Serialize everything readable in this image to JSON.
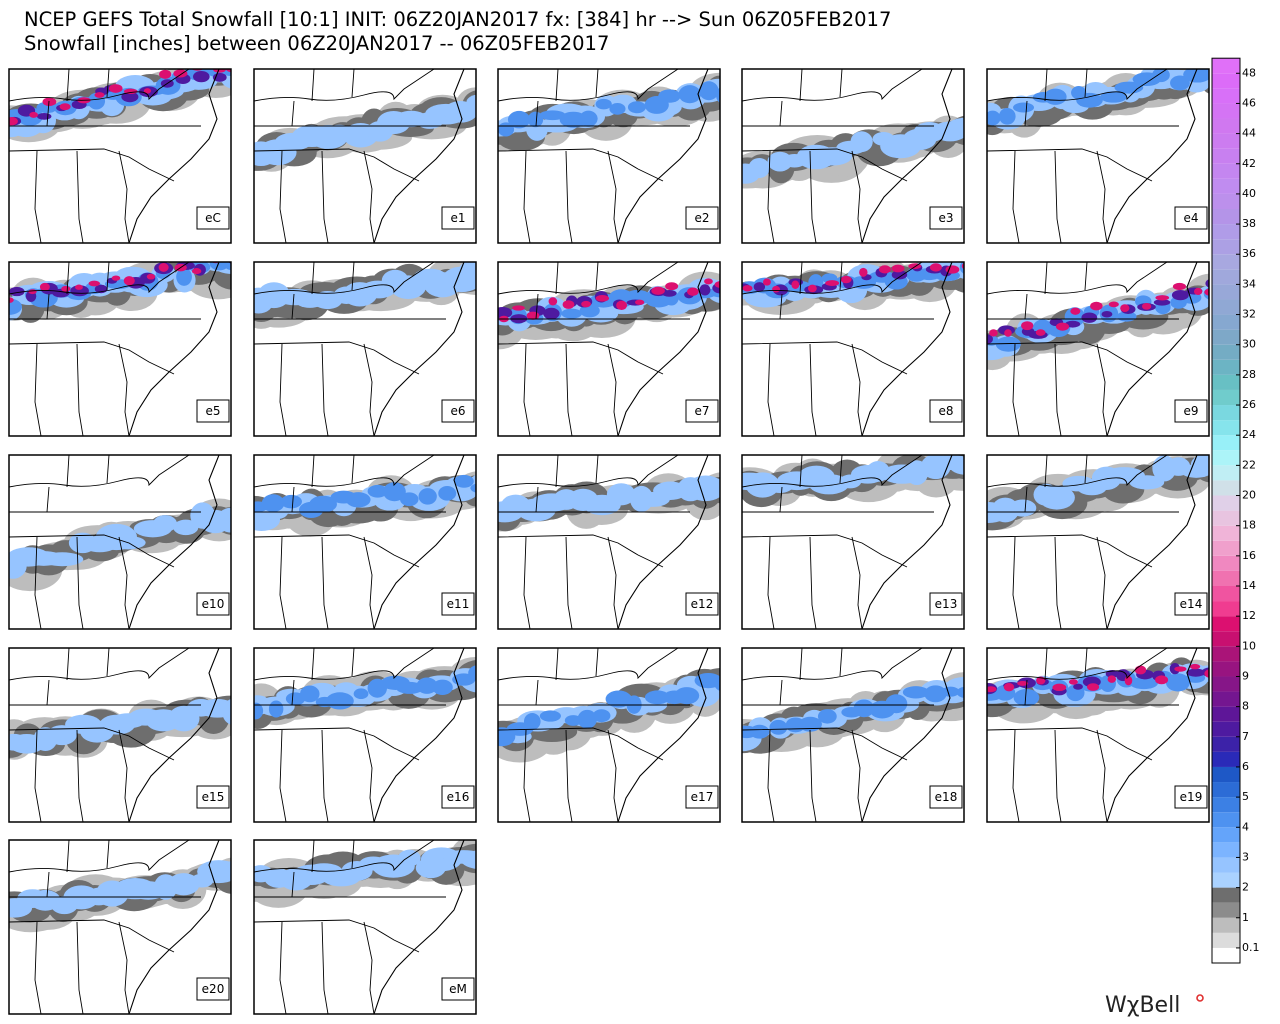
{
  "header": {
    "title": "NCEP GEFS Total Snowfall [10:1] INIT: 06Z20JAN2017 fx: [384] hr --> Sun 06Z05FEB2017",
    "subtitle": "Snowfall [inches] between 06Z20JAN2017 -- 06Z05FEB2017"
  },
  "panels": [
    "eC",
    "e1",
    "e2",
    "e3",
    "e4",
    "e5",
    "e6",
    "e7",
    "e8",
    "e9",
    "e10",
    "e11",
    "e12",
    "e13",
    "e14",
    "e15",
    "e16",
    "e17",
    "e18",
    "e19",
    "e20",
    "eM"
  ],
  "colorbar": {
    "ticks": [
      0.1,
      1,
      2,
      3,
      4,
      5,
      6,
      7,
      8,
      9,
      10,
      12,
      14,
      16,
      18,
      20,
      22,
      24,
      26,
      28,
      30,
      32,
      34,
      36,
      38,
      40,
      42,
      44,
      46,
      48
    ],
    "colors": [
      "#ffffff",
      "#dcdcdc",
      "#bdbdbd",
      "#8c8c8c",
      "#6e6e6e",
      "#aad2ff",
      "#96c4ff",
      "#7cb4ff",
      "#64a4fa",
      "#4e92f0",
      "#3c80e4",
      "#2c6cd6",
      "#1e58c6",
      "#2a2ab8",
      "#3c22a8",
      "#4e1aa0",
      "#5e1698",
      "#741690",
      "#861688",
      "#981480",
      "#aa1478",
      "#c81070",
      "#dc1070",
      "#f03c90",
      "#f054a0",
      "#f072b0",
      "#f088c0",
      "#f0a0cc",
      "#f0b4d8",
      "#e8c4e0",
      "#e0d0e8",
      "#d0e0e8",
      "#c0eef4",
      "#acf4f8",
      "#98f0f8",
      "#86e4ec",
      "#7ad8e0",
      "#70cccc",
      "#68c0c4",
      "#6cb4c4",
      "#74acc4",
      "#7ea8c8",
      "#86a8d0",
      "#90a8d4",
      "#98a8d8",
      "#a0a8dc",
      "#a8a8e0",
      "#aca0e4",
      "#b09ce8",
      "#b494e8",
      "#bc90ec",
      "#c08cf0",
      "#c486f0",
      "#c880f0",
      "#cc7cf0",
      "#d078f0",
      "#d474f4",
      "#d870f8",
      "#dc6cf8",
      "#e070f8"
    ]
  },
  "logo": "WχBell"
}
